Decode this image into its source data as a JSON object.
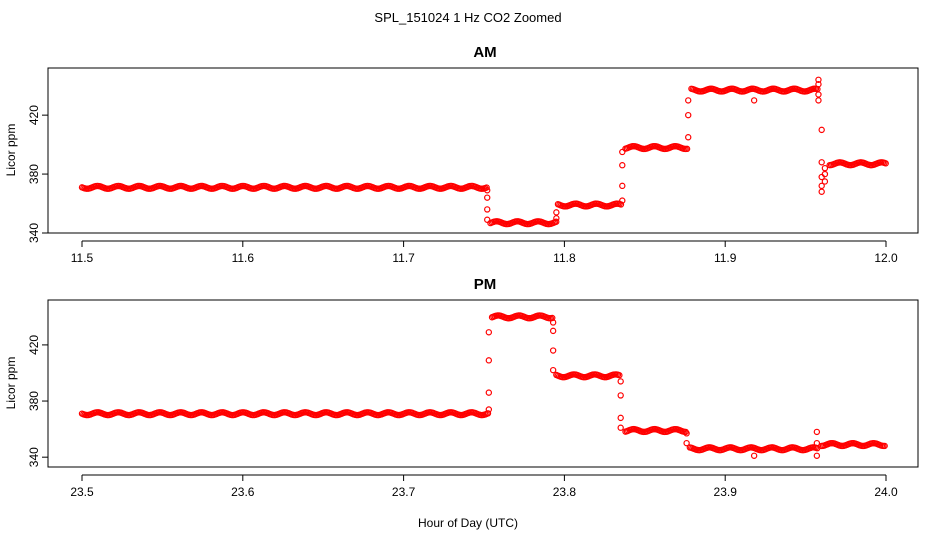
{
  "figure": {
    "title": "SPL_151024  1 Hz CO2 Zoomed",
    "xlabel": "Hour of Day (UTC)"
  },
  "chart_data": [
    {
      "type": "scatter",
      "title": "AM",
      "ylabel": "Licor ppm",
      "xlim": [
        11.5,
        12.0
      ],
      "ylim": [
        340,
        452
      ],
      "xticks": [
        "11.5",
        "11.6",
        "11.7",
        "11.8",
        "11.9",
        "12.0"
      ],
      "yticks": [
        "340",
        "380",
        "420"
      ],
      "marker_color": "#ff0000",
      "segments": [
        {
          "x0": 11.5,
          "x1": 11.752,
          "y": 371
        },
        {
          "x0": 11.754,
          "x1": 11.795,
          "y": 347
        },
        {
          "x0": 11.796,
          "x1": 11.836,
          "y": 359
        },
        {
          "x0": 11.838,
          "x1": 11.877,
          "y": 398
        },
        {
          "x0": 11.879,
          "x1": 11.958,
          "y": 437
        },
        {
          "x0": 11.965,
          "x1": 12.0,
          "y": 387
        }
      ],
      "transitions": [
        {
          "x": 11.752,
          "y": [
            369,
            364,
            356,
            349
          ]
        },
        {
          "x": 11.795,
          "y": [
            350,
            354
          ]
        },
        {
          "x": 11.836,
          "y": [
            362,
            372,
            386,
            395
          ]
        },
        {
          "x": 11.877,
          "y": [
            405,
            420,
            430
          ]
        },
        {
          "x": 11.918,
          "y": [
            430
          ]
        },
        {
          "x": 11.958,
          "y": [
            444,
            441,
            434,
            430
          ]
        },
        {
          "x": 11.96,
          "y": [
            410,
            388,
            378,
            372,
            368
          ]
        },
        {
          "x": 11.962,
          "y": [
            375,
            380,
            384
          ]
        }
      ]
    },
    {
      "type": "scatter",
      "title": "PM",
      "ylabel": "Licor ppm",
      "xlim": [
        23.5,
        24.0
      ],
      "ylim": [
        333,
        452
      ],
      "xticks": [
        "23.5",
        "23.6",
        "23.7",
        "23.8",
        "23.9",
        "24.0"
      ],
      "yticks": [
        "340",
        "380",
        "420"
      ],
      "marker_color": "#ff0000",
      "segments": [
        {
          "x0": 23.5,
          "x1": 23.753,
          "y": 371
        },
        {
          "x0": 23.755,
          "x1": 23.793,
          "y": 440
        },
        {
          "x0": 23.795,
          "x1": 23.835,
          "y": 398
        },
        {
          "x0": 23.838,
          "x1": 23.876,
          "y": 359
        },
        {
          "x0": 23.878,
          "x1": 23.958,
          "y": 346
        },
        {
          "x0": 23.96,
          "x1": 24.0,
          "y": 349
        }
      ],
      "transitions": [
        {
          "x": 23.753,
          "y": [
            374,
            386,
            409,
            429
          ]
        },
        {
          "x": 23.793,
          "y": [
            436,
            430,
            416,
            402
          ]
        },
        {
          "x": 23.835,
          "y": [
            394,
            384,
            368,
            361
          ]
        },
        {
          "x": 23.876,
          "y": [
            357,
            350
          ]
        },
        {
          "x": 23.918,
          "y": [
            341
          ]
        },
        {
          "x": 23.957,
          "y": [
            341,
            350,
            358
          ]
        }
      ]
    }
  ]
}
